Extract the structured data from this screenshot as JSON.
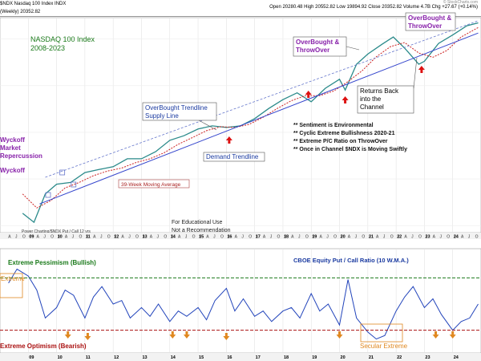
{
  "header": {
    "symbol": "$NDX Nasdaq 100 Index INDX",
    "subtitle": "(Weekly) 20352.82",
    "quote": "Open 20280.48  High 20552.82  Low 19894.92  Close 20352.82  Volume 4.7B  Chg +27.67 (+0.14%)",
    "watermark": "© StockCharts.com"
  },
  "annotations": {
    "main_title": "NASDAQ 100 Index",
    "main_years": "2008-2023",
    "wyckoff_left": "Wyckoff\nMarket\nRepercussion",
    "wyckoff_left2": "Wyckoff",
    "supply_line": "OverBought Trendline\nSupply Line",
    "demand_line": "Demand Trendline",
    "ma_label": "39-Week Moving Average",
    "overbought_throwover": "OverBought &\nThrowOver",
    "overbought_throwover2": "OverBought &\nThrowOver",
    "returns_back": "Returns Back\ninto the\nChannel",
    "notes": [
      "** Sentiment is Environmental",
      "** Cyclic Extreme Bullishness 2020-21",
      "** Extreme P/C Ratio on ThrowOver",
      "** Once in Channel $NDX is Moving Swiftly"
    ],
    "educational": "For Educational Use\nNot a Recommendation",
    "power_label": "Power Charting/$NDX Put / Call 12 yrs",
    "extreme_pessimism": "Extreme Pessimism (Bullish)",
    "extreme_optimism": "Extreme Optimism (Bearish)",
    "extreme_left": "Extreme",
    "secular_extreme": "Secular Extreme",
    "pc_title": "CBOE Equity Put / Call Ratio (10 W.M.A.)"
  },
  "chart_data": [
    {
      "type": "line",
      "title": "NASDAQ 100 Index",
      "subtitle": "2008-2023",
      "scale": "log",
      "x_ticks": [
        "09",
        "10",
        "11",
        "12",
        "13",
        "14",
        "15",
        "16",
        "17",
        "18",
        "19",
        "20",
        "21",
        "22",
        "23",
        "24"
      ],
      "series": [
        {
          "name": "$NDX",
          "x": [
            2008.8,
            2009.2,
            2009.6,
            2010.0,
            2010.5,
            2011.0,
            2011.5,
            2012.0,
            2012.5,
            2013.0,
            2013.5,
            2014.0,
            2014.5,
            2015.0,
            2015.5,
            2016.0,
            2016.5,
            2017.0,
            2017.5,
            2018.0,
            2018.5,
            2019.0,
            2019.5,
            2020.0,
            2020.2,
            2020.6,
            2021.0,
            2021.5,
            2021.9,
            2022.3,
            2022.8,
            2023.0,
            2023.5,
            2024.0,
            2024.5,
            2024.9
          ],
          "y": [
            1200,
            1050,
            1600,
            1850,
            1900,
            2200,
            2300,
            2400,
            2700,
            2700,
            3000,
            3550,
            3800,
            4200,
            4400,
            4300,
            4400,
            4900,
            5700,
            6500,
            7200,
            6300,
            7700,
            8800,
            7500,
            11000,
            12800,
            14800,
            16500,
            14000,
            11000,
            11500,
            15000,
            17000,
            19500,
            20350
          ]
        },
        {
          "name": "39-Week Moving Average",
          "x": [
            2008.8,
            2009.3,
            2009.8,
            2010.3,
            2010.8,
            2011.3,
            2011.8,
            2012.3,
            2012.8,
            2013.3,
            2013.8,
            2014.3,
            2014.8,
            2015.3,
            2015.8,
            2016.3,
            2016.8,
            2017.3,
            2017.8,
            2018.3,
            2018.8,
            2019.3,
            2019.8,
            2020.3,
            2020.8,
            2021.3,
            2021.8,
            2022.3,
            2022.8,
            2023.3,
            2023.8,
            2024.3,
            2024.9
          ],
          "y": [
            1600,
            1300,
            1450,
            1750,
            1900,
            2100,
            2250,
            2350,
            2550,
            2700,
            2950,
            3350,
            3700,
            4100,
            4350,
            4300,
            4500,
            5000,
            5700,
            6400,
            6900,
            6900,
            7400,
            8500,
            10000,
            12300,
            14300,
            15200,
            13000,
            12200,
            13500,
            16500,
            19000
          ]
        }
      ]
    },
    {
      "type": "line",
      "title": "CBOE Equity Put / Call Ratio (10 W.M.A.)",
      "levels": {
        "extreme_pessimism": 0.85,
        "extreme_optimism": 0.55
      },
      "series": [
        {
          "name": "CBOE Equity Put / Call Ratio (10 W.M.A.)",
          "x": [
            2008.3,
            2008.6,
            2009.0,
            2009.3,
            2009.6,
            2010.0,
            2010.3,
            2010.6,
            2011.0,
            2011.3,
            2011.6,
            2012.0,
            2012.3,
            2012.6,
            2013.0,
            2013.3,
            2013.6,
            2014.0,
            2014.3,
            2014.6,
            2015.0,
            2015.3,
            2015.6,
            2016.0,
            2016.3,
            2016.6,
            2017.0,
            2017.3,
            2017.6,
            2018.0,
            2018.3,
            2018.6,
            2019.0,
            2019.3,
            2019.6,
            2020.0,
            2020.3,
            2020.6,
            2021.0,
            2021.3,
            2021.6,
            2022.0,
            2022.3,
            2022.6,
            2023.0,
            2023.3,
            2023.6,
            2024.0,
            2024.3,
            2024.6,
            2024.9
          ],
          "y": [
            0.82,
            0.9,
            0.86,
            0.78,
            0.62,
            0.68,
            0.78,
            0.75,
            0.62,
            0.74,
            0.8,
            0.7,
            0.72,
            0.62,
            0.68,
            0.63,
            0.7,
            0.6,
            0.66,
            0.63,
            0.68,
            0.61,
            0.72,
            0.79,
            0.66,
            0.73,
            0.63,
            0.66,
            0.6,
            0.66,
            0.68,
            0.62,
            0.76,
            0.66,
            0.7,
            0.58,
            0.84,
            0.62,
            0.54,
            0.5,
            0.52,
            0.66,
            0.74,
            0.8,
            0.68,
            0.73,
            0.64,
            0.55,
            0.6,
            0.62,
            0.7
          ]
        }
      ]
    }
  ],
  "colors": {
    "price": "#2a8a8a",
    "ma": "#cc2222",
    "supply": "#6677cc",
    "demand": "#3344cc",
    "pc": "#2244bb",
    "pessimism": "#1a7a1a",
    "optimism": "#aa1111",
    "arrow_red": "#dd1111",
    "arrow_orange": "#e08820",
    "purple": "#8822aa",
    "title_green": "#1a7a1a"
  }
}
